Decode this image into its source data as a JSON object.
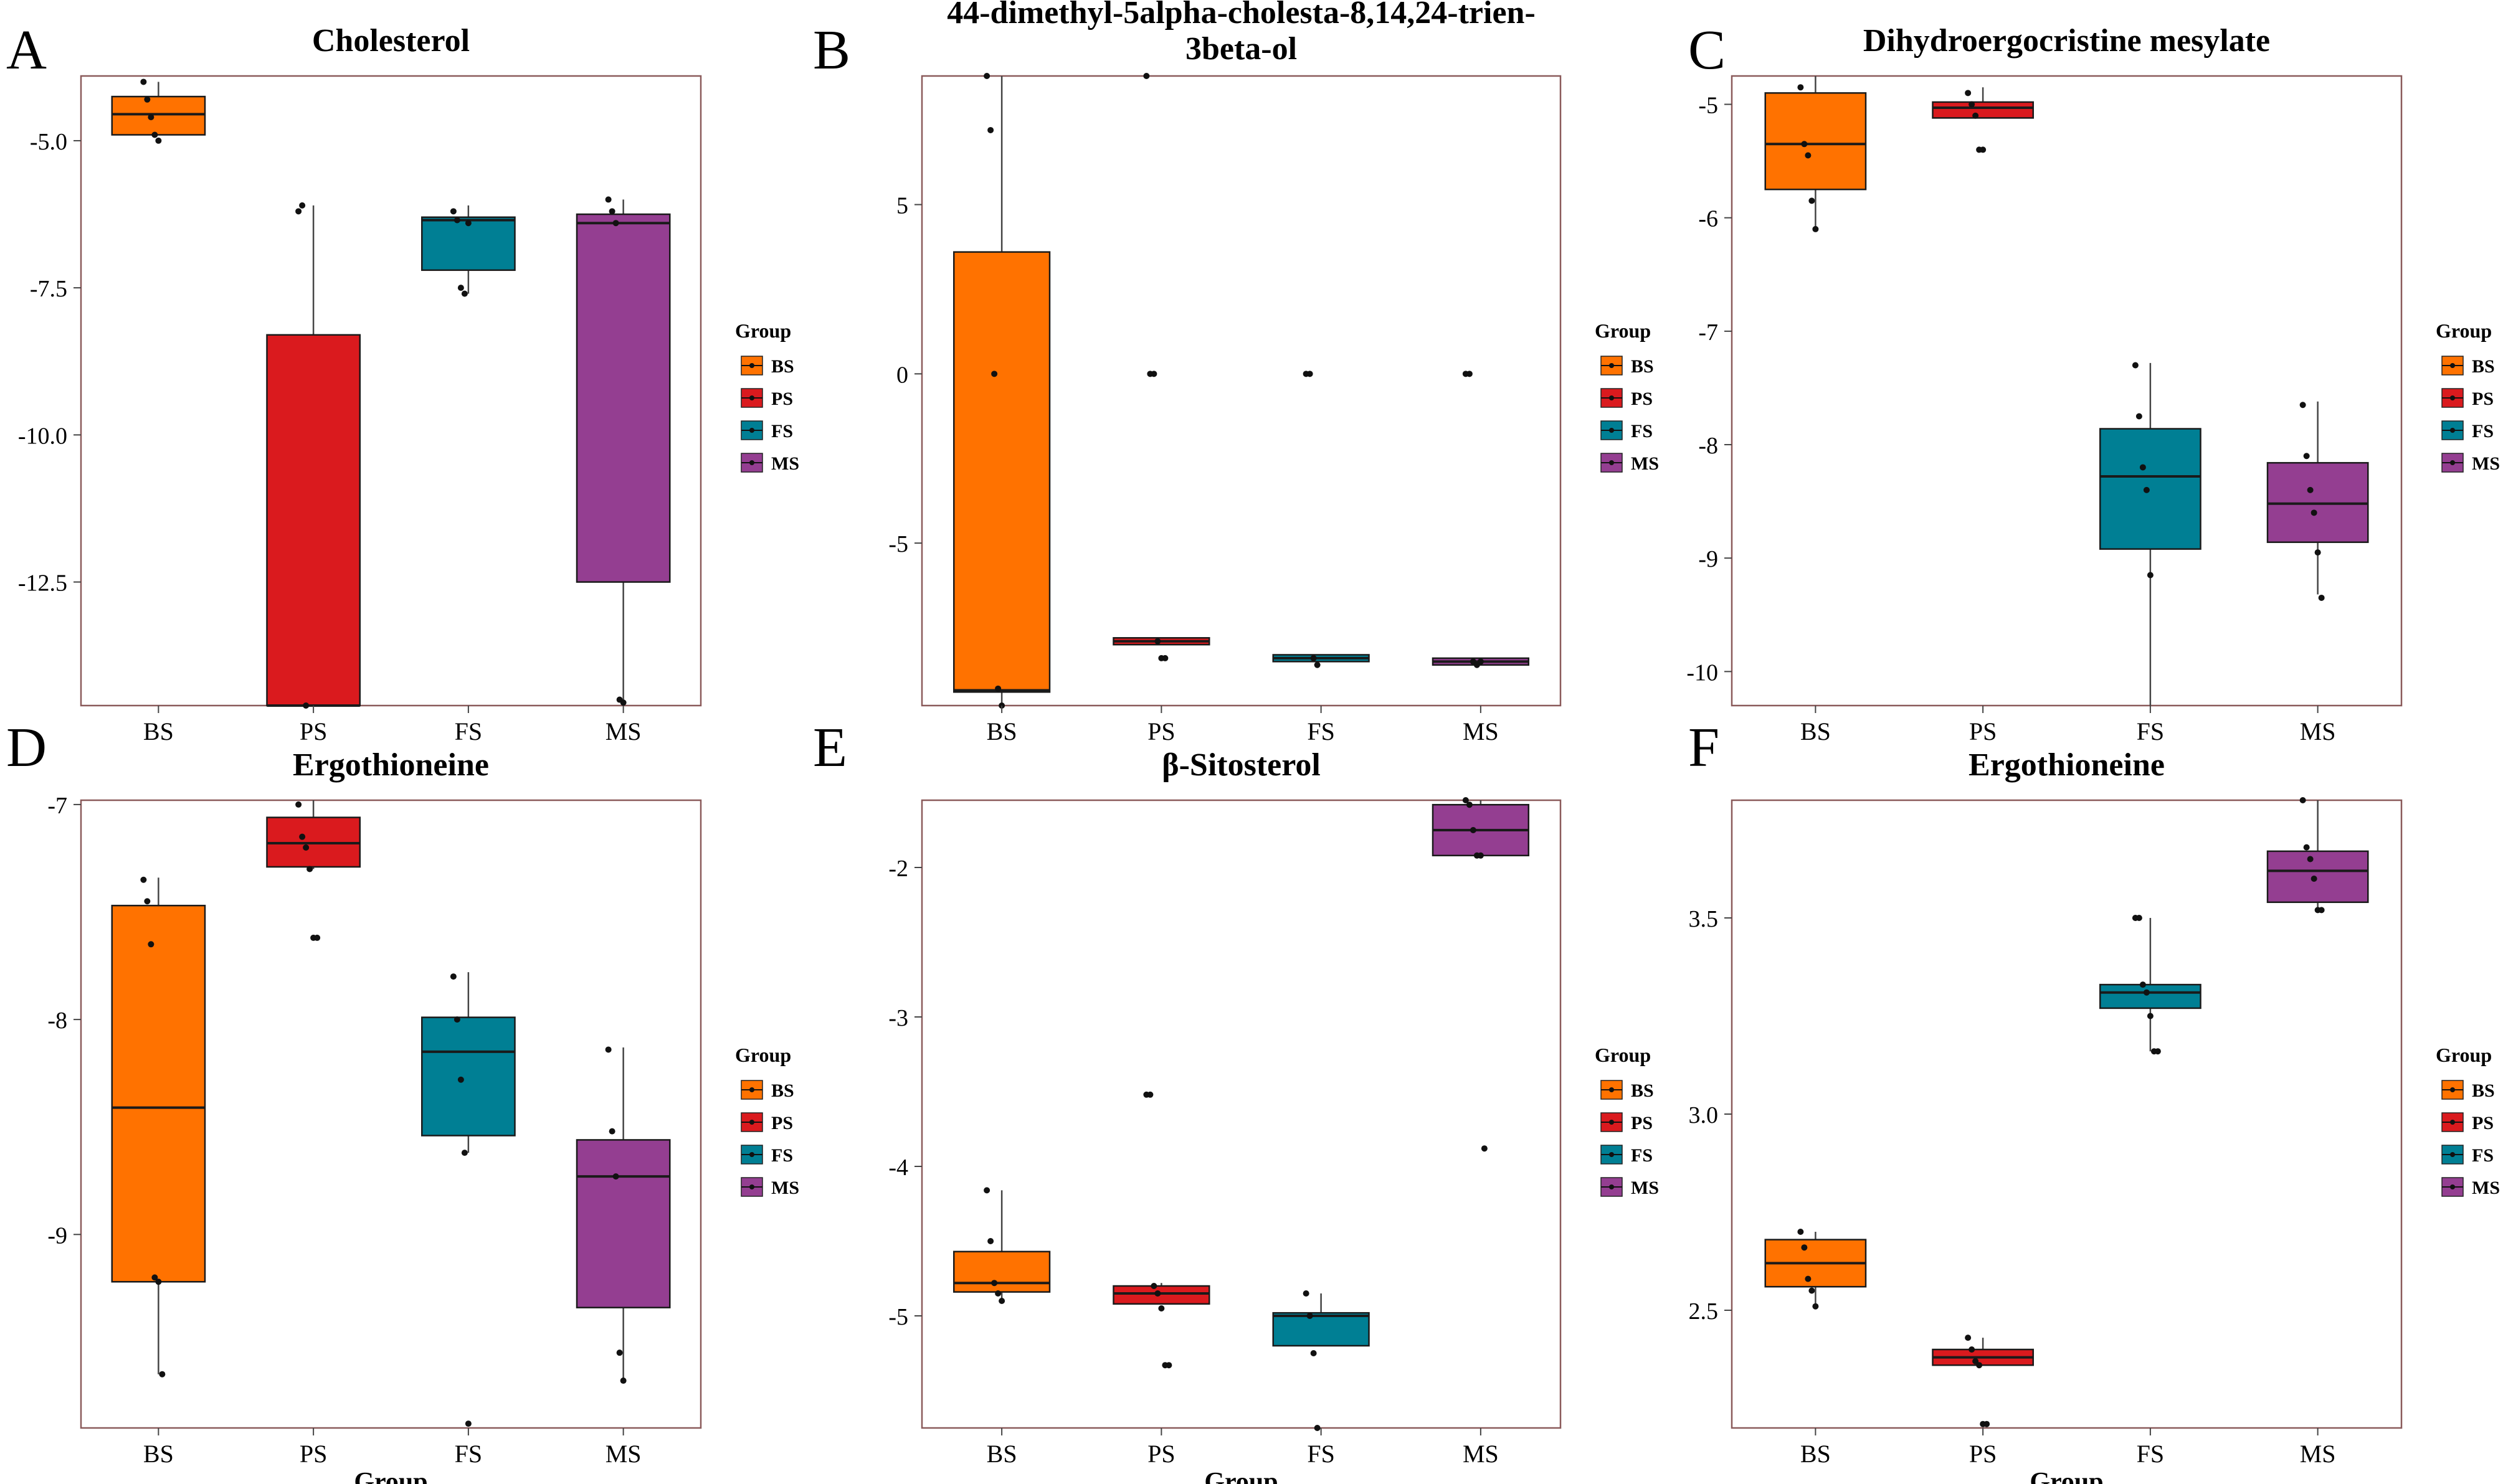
{
  "figure": {
    "panels_count": 6
  },
  "chart_data": [
    {
      "type": "box",
      "panel": "A",
      "title": "Cholesterol",
      "xlabel": "",
      "ylabel": "",
      "categories": [
        "BS",
        "PS",
        "FS",
        "MS"
      ],
      "ylim": [
        -14.6,
        -3.9
      ],
      "yticks": [
        -5.0,
        -7.5,
        -10.0,
        -12.5
      ],
      "ytick_labels": [
        "-5.0",
        "-7.5",
        "-10.0",
        "-12.5"
      ],
      "boxes": [
        {
          "q1": -4.9,
          "median": -4.55,
          "q3": -4.25,
          "low": -4.9,
          "high": -4.0
        },
        {
          "q1": -14.6,
          "median": -14.6,
          "q3": -8.3,
          "low": -14.6,
          "high": -6.1
        },
        {
          "q1": -7.2,
          "median": -6.35,
          "q3": -6.3,
          "low": -7.6,
          "high": -6.1
        },
        {
          "q1": -12.5,
          "median": -6.4,
          "q3": -6.25,
          "low": -14.6,
          "high": -6.0
        }
      ],
      "points": [
        [
          -4.0,
          -4.3,
          -4.6,
          -4.9,
          -5.0
        ],
        [
          -6.2,
          -6.1,
          -14.6
        ],
        [
          -6.2,
          -6.35,
          -7.5,
          -7.6,
          -6.4
        ],
        [
          -6.0,
          -6.2,
          -6.4,
          -14.5,
          -14.55
        ]
      ],
      "legend": {
        "title": "Group",
        "entries": [
          "BS",
          "PS",
          "FS",
          "MS"
        ]
      }
    },
    {
      "type": "box",
      "panel": "B",
      "title": "44-dimethyl-5alpha-cholesta-8,14,24-trien-\n3beta-ol",
      "title_lines": [
        "44-dimethyl-5alpha-cholesta-8,14,24-trien-",
        "3beta-ol"
      ],
      "xlabel": "",
      "ylabel": "",
      "categories": [
        "BS",
        "PS",
        "FS",
        "MS"
      ],
      "ylim": [
        -9.8,
        8.8
      ],
      "yticks": [
        5,
        0,
        -5
      ],
      "ytick_labels": [
        "5",
        "0",
        "-5"
      ],
      "boxes": [
        {
          "q1": -9.4,
          "median": -9.35,
          "q3": 3.6,
          "low": -9.8,
          "high": 8.8
        },
        {
          "q1": -8.0,
          "median": -7.9,
          "q3": -7.8,
          "low": -8.0,
          "high": -7.8
        },
        {
          "q1": -8.5,
          "median": -8.4,
          "q3": -8.3,
          "low": -8.5,
          "high": -8.3
        },
        {
          "q1": -8.6,
          "median": -8.5,
          "q3": -8.4,
          "low": -8.6,
          "high": -8.4
        }
      ],
      "points": [
        [
          8.8,
          7.2,
          0,
          -9.3,
          -9.8
        ],
        [
          8.8,
          0,
          0,
          -7.9,
          -8.4,
          -8.4
        ],
        [
          0,
          0,
          -8.4,
          -8.6
        ],
        [
          0,
          0,
          -8.5,
          -8.6,
          -8.5
        ]
      ],
      "legend": {
        "title": "Group",
        "entries": [
          "BS",
          "PS",
          "FS",
          "MS"
        ]
      }
    },
    {
      "type": "box",
      "panel": "C",
      "title": "Dihydroergocristine mesylate",
      "xlabel": "",
      "ylabel": "",
      "categories": [
        "BS",
        "PS",
        "FS",
        "MS"
      ],
      "ylim": [
        -10.3,
        -4.75
      ],
      "yticks": [
        -5,
        -6,
        -7,
        -8,
        -9,
        -10
      ],
      "ytick_labels": [
        "-5",
        "-6",
        "-7",
        "-8",
        "-9",
        "-10"
      ],
      "boxes": [
        {
          "q1": -5.75,
          "median": -5.35,
          "q3": -4.9,
          "low": -6.1,
          "high": -4.75
        },
        {
          "q1": -5.12,
          "median": -5.03,
          "q3": -4.98,
          "low": -5.12,
          "high": -4.85
        },
        {
          "q1": -8.92,
          "median": -8.28,
          "q3": -7.86,
          "low": -10.3,
          "high": -7.28
        },
        {
          "q1": -8.86,
          "median": -8.52,
          "q3": -8.16,
          "low": -9.32,
          "high": -7.62
        }
      ],
      "points": [
        [
          -4.85,
          -5.35,
          -5.45,
          -5.85,
          -6.1
        ],
        [
          -4.9,
          -5.0,
          -5.1,
          -5.4,
          -5.4
        ],
        [
          -7.3,
          -7.75,
          -8.2,
          -8.4,
          -9.15
        ],
        [
          -7.65,
          -8.1,
          -8.4,
          -8.6,
          -8.95,
          -9.35
        ]
      ],
      "legend": {
        "title": "Group",
        "entries": [
          "BS",
          "PS",
          "FS",
          "MS"
        ]
      }
    },
    {
      "type": "box",
      "panel": "D",
      "title": "Ergothioneine",
      "xlabel": "Group",
      "ylabel": "",
      "categories": [
        "BS",
        "PS",
        "FS",
        "MS"
      ],
      "ylim": [
        -9.9,
        -6.98
      ],
      "yticks": [
        -7,
        -8,
        -9
      ],
      "ytick_labels": [
        "-7",
        "-8",
        "-9"
      ],
      "boxes": [
        {
          "q1": -9.22,
          "median": -8.41,
          "q3": -7.47,
          "low": -9.65,
          "high": -7.34
        },
        {
          "q1": -7.29,
          "median": -7.18,
          "q3": -7.06,
          "low": -7.3,
          "high": -6.98
        },
        {
          "q1": -8.54,
          "median": -8.15,
          "q3": -7.99,
          "low": -8.62,
          "high": -7.78
        },
        {
          "q1": -9.34,
          "median": -8.73,
          "q3": -8.56,
          "low": -9.67,
          "high": -8.13
        }
      ],
      "points": [
        [
          -7.35,
          -7.45,
          -7.65,
          -9.2,
          -9.22,
          -9.65
        ],
        [
          -7.0,
          -7.15,
          -7.2,
          -7.3,
          -7.62,
          -7.62
        ],
        [
          -7.8,
          -8.0,
          -8.28,
          -8.62,
          -9.88
        ],
        [
          -8.14,
          -8.52,
          -8.73,
          -9.55,
          -9.68
        ]
      ],
      "legend": {
        "title": "Group",
        "entries": [
          "BS",
          "PS",
          "FS",
          "MS"
        ]
      }
    },
    {
      "type": "box",
      "panel": "E",
      "title": "β-Sitosterol",
      "xlabel": "Group",
      "ylabel": "",
      "categories": [
        "BS",
        "PS",
        "FS",
        "MS"
      ],
      "ylim": [
        -5.75,
        -1.55
      ],
      "yticks": [
        -2,
        -3,
        -4,
        -5
      ],
      "ytick_labels": [
        "-2",
        "-3",
        "-4",
        "-5"
      ],
      "boxes": [
        {
          "q1": -4.84,
          "median": -4.78,
          "q3": -4.57,
          "low": -4.9,
          "high": -4.16
        },
        {
          "q1": -4.92,
          "median": -4.85,
          "q3": -4.8,
          "low": -4.92,
          "high": -4.78
        },
        {
          "q1": -5.2,
          "median": -5.0,
          "q3": -4.98,
          "low": -5.2,
          "high": -4.85
        },
        {
          "q1": -1.92,
          "median": -1.75,
          "q3": -1.58,
          "low": -1.92,
          "high": -1.55
        }
      ],
      "points": [
        [
          -4.16,
          -4.5,
          -4.78,
          -4.85,
          -4.9
        ],
        [
          -3.52,
          -3.52,
          -4.8,
          -4.85,
          -4.95,
          -5.33,
          -5.33
        ],
        [
          -4.85,
          -5.0,
          -5.25,
          -5.75
        ],
        [
          -1.55,
          -1.58,
          -1.75,
          -1.92,
          -1.92,
          -3.88
        ]
      ],
      "legend": {
        "title": "Group",
        "entries": [
          "BS",
          "PS",
          "FS",
          "MS"
        ]
      }
    },
    {
      "type": "box",
      "panel": "F",
      "title": "Ergothioneine",
      "xlabel": "Group",
      "ylabel": "",
      "categories": [
        "BS",
        "PS",
        "FS",
        "MS"
      ],
      "ylim": [
        2.2,
        3.8
      ],
      "yticks": [
        3.5,
        3.0,
        2.5
      ],
      "ytick_labels": [
        "3.5",
        "3.0",
        "2.5"
      ],
      "boxes": [
        {
          "q1": 2.56,
          "median": 2.62,
          "q3": 2.68,
          "low": 2.51,
          "high": 2.7
        },
        {
          "q1": 2.36,
          "median": 2.38,
          "q3": 2.4,
          "low": 2.36,
          "high": 2.43
        },
        {
          "q1": 3.27,
          "median": 3.31,
          "q3": 3.33,
          "low": 3.16,
          "high": 3.5
        },
        {
          "q1": 3.54,
          "median": 3.62,
          "q3": 3.67,
          "low": 3.52,
          "high": 3.8
        }
      ],
      "points": [
        [
          2.7,
          2.66,
          2.58,
          2.55,
          2.51
        ],
        [
          2.43,
          2.4,
          2.37,
          2.36,
          2.21,
          2.21
        ],
        [
          3.5,
          3.5,
          3.33,
          3.31,
          3.25,
          3.16,
          3.16
        ],
        [
          3.8,
          3.68,
          3.65,
          3.6,
          3.52,
          3.52
        ]
      ],
      "legend": {
        "title": "Group",
        "entries": [
          "BS",
          "PS",
          "FS",
          "MS"
        ]
      }
    }
  ],
  "colors": {
    "BS": "#FF7200",
    "PS": "#DA1A1E",
    "FS": "#007F94",
    "MS": "#943E91",
    "border": "#8a5a5a",
    "box_line": "#1a1a1a"
  }
}
